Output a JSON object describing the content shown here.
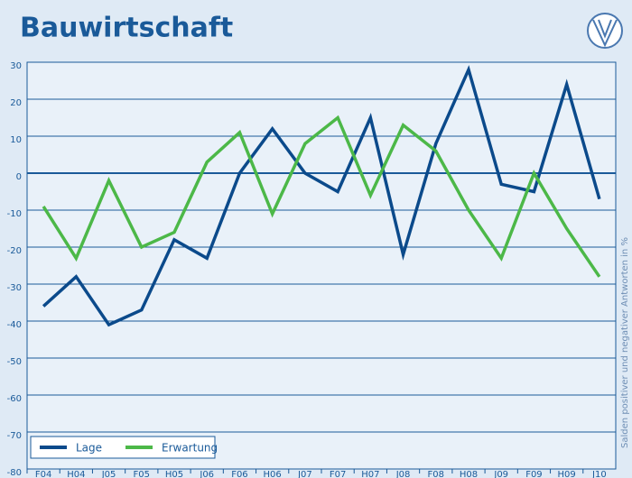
{
  "chart_data": {
    "type": "line",
    "title": "Bauwirtschaft",
    "y_axis_label": "Salden positiver und negativer Antworten in %",
    "categories": [
      "F04",
      "H04",
      "J05",
      "F05",
      "H05",
      "J06",
      "F06",
      "H06",
      "J07",
      "F07",
      "H07",
      "J08",
      "F08",
      "H08",
      "J09",
      "F09",
      "H09",
      "J10"
    ],
    "series": [
      {
        "name": "Lage",
        "color": "#0b4a8b",
        "values": [
          -36,
          -28,
          -41,
          -37,
          -18,
          -23,
          0,
          12,
          0,
          -5,
          15,
          -22,
          8,
          28,
          -3,
          -5,
          24,
          -7
        ]
      },
      {
        "name": "Erwartung",
        "color": "#4cb848",
        "values": [
          -9,
          -23,
          -2,
          -20,
          -16,
          3,
          11,
          -11,
          8,
          15,
          -6,
          13,
          6,
          -10,
          -23,
          0,
          -15,
          -28
        ]
      }
    ],
    "ylim": [
      -80,
      30
    ],
    "yticks": [
      -80,
      -70,
      -60,
      -50,
      -40,
      -30,
      -20,
      -10,
      0,
      10,
      20,
      30
    ],
    "grid": true,
    "legend": "bottom-left"
  }
}
